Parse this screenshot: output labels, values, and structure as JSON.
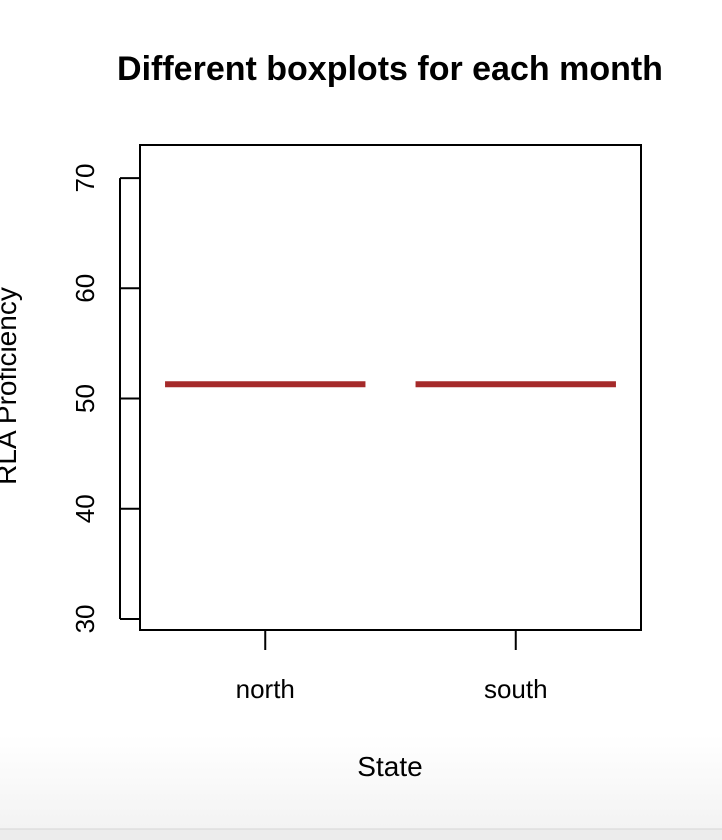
{
  "chart_data": {
    "type": "box",
    "title": "Different boxplots for each month",
    "xlabel": "State",
    "ylabel": "RLA Proficiency",
    "categories": [
      "north",
      "south"
    ],
    "series": [
      {
        "values": [
          51.3,
          51.3
        ],
        "stats": [
          {
            "category": "north",
            "min": 51.3,
            "q1": 51.3,
            "median": 51.3,
            "q3": 51.3,
            "max": 51.3
          },
          {
            "category": "south",
            "min": 51.3,
            "q1": 51.3,
            "median": 51.3,
            "q3": 51.3,
            "max": 51.3
          }
        ]
      }
    ],
    "ylim": [
      29,
      73
    ],
    "yticks": [
      30,
      40,
      50,
      60,
      70
    ],
    "median_color": "#a52a2a",
    "grid": false,
    "legend": "none"
  }
}
